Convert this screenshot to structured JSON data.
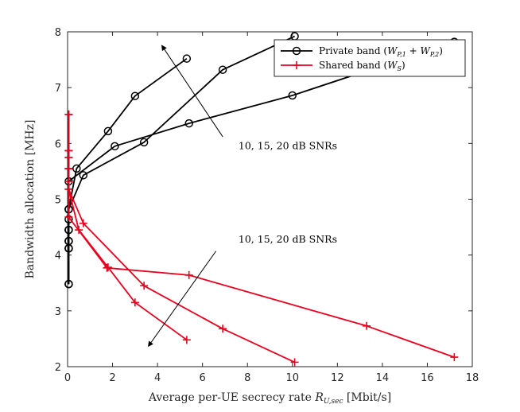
{
  "chart_data": {
    "type": "line",
    "title": "",
    "xlabel": "Average per-UE secrecy rate R_{U,sec} [Mbit/s]",
    "xlabel_parts": {
      "prefix": "Average per-UE secrecy rate ",
      "symbol": "R",
      "subscript": "U,sec",
      "suffix": " [Mbit/s]"
    },
    "ylabel": "Bandwidth allocation [MHz]",
    "xlim": [
      0,
      18
    ],
    "ylim": [
      2,
      8
    ],
    "xticks": [
      0,
      2,
      4,
      6,
      8,
      10,
      12,
      14,
      16,
      18
    ],
    "yticks": [
      2,
      3,
      4,
      5,
      6,
      7,
      8
    ],
    "grid": false,
    "legend_position": "top-right",
    "series": [
      {
        "name": "Private band (W_{P,1} + W_{P,2})",
        "legend_label": {
          "prefix": "Private band (",
          "symbol": "W",
          "subscript": "P,1",
          "mid": " + ",
          "symbol2": "W",
          "subscript2": "P,2",
          "suffix": ")"
        },
        "color": "#000000",
        "marker": "circle",
        "curves": [
          {
            "x": [
              0.05,
              0.05,
              0.05,
              0.05,
              0.05,
              0.4,
              1.8,
              3.0,
              5.3
            ],
            "y": [
              3.48,
              4.12,
              4.25,
              4.45,
              4.82,
              5.55,
              6.22,
              6.85,
              7.52
            ]
          },
          {
            "x": [
              0.05,
              0.05,
              0.05,
              0.05,
              0.05,
              0.7,
              3.4,
              6.9,
              10.1
            ],
            "y": [
              3.48,
              4.12,
              4.25,
              4.45,
              4.82,
              5.43,
              6.02,
              7.32,
              7.92
            ]
          },
          {
            "x": [
              0.05,
              0.05,
              0.05,
              0.05,
              0.05,
              0.05,
              0.05,
              2.1,
              5.4,
              10.0,
              17.2
            ],
            "y": [
              3.48,
              4.12,
              4.25,
              4.45,
              4.64,
              4.82,
              5.32,
              5.95,
              6.36,
              6.86,
              7.82
            ]
          }
        ]
      },
      {
        "name": "Shared band (W_S)",
        "legend_label": {
          "prefix": "Shared band (",
          "symbol": "W",
          "subscript": "S",
          "suffix": ")"
        },
        "color": "#e8001e",
        "marker": "plus",
        "curves": [
          {
            "x": [
              0.05,
              0.05,
              0.05,
              0.05,
              0.05,
              0.5,
              1.8,
              3.0,
              5.3
            ],
            "y": [
              6.52,
              5.87,
              5.75,
              5.55,
              5.18,
              4.45,
              3.78,
              3.15,
              2.48
            ]
          },
          {
            "x": [
              0.05,
              0.05,
              0.05,
              0.05,
              0.05,
              0.7,
              3.4,
              6.9,
              10.1
            ],
            "y": [
              6.52,
              5.87,
              5.75,
              5.55,
              5.18,
              4.57,
              3.45,
              2.68,
              2.08
            ]
          },
          {
            "x": [
              0.05,
              0.05,
              0.05,
              0.05,
              0.05,
              0.05,
              0.05,
              1.75,
              5.4,
              13.3,
              17.2
            ],
            "y": [
              6.52,
              5.87,
              5.75,
              5.55,
              5.32,
              5.18,
              4.68,
              3.77,
              3.64,
              2.73,
              2.17
            ]
          }
        ]
      }
    ],
    "annotations": [
      {
        "text": "10, 15, 20 dB SNRs",
        "x": 7.6,
        "y": 5.9,
        "arrow_from": [
          6.9,
          6.12
        ],
        "arrow_to": [
          4.2,
          7.75
        ],
        "arrow_head": "end"
      },
      {
        "text": "10, 15, 20 dB SNRs",
        "x": 7.6,
        "y": 4.22,
        "arrow_from": [
          6.6,
          4.07
        ],
        "arrow_to": [
          3.6,
          2.37
        ],
        "arrow_head": "end"
      }
    ]
  }
}
